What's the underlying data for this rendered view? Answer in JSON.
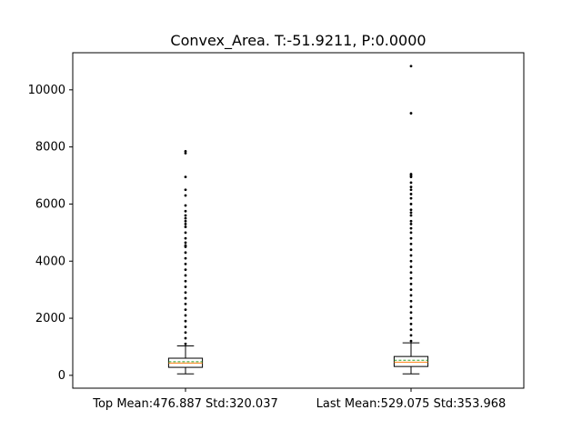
{
  "chart_data": {
    "type": "boxplot",
    "title": "Convex_Area. T:-51.9211, P:0.0000",
    "xlabel": "",
    "ylabel": "",
    "ylim": [
      -450,
      11300
    ],
    "yticks": [
      0,
      2000,
      4000,
      6000,
      8000,
      10000
    ],
    "ytick_labels": [
      "0",
      "2000",
      "4000",
      "6000",
      "8000",
      "10000"
    ],
    "grid": false,
    "categories": [
      "Top Mean:476.887 Std:320.037",
      "Last Mean:529.075 Std:353.968"
    ],
    "boxes": [
      {
        "label": "Top Mean:476.887 Std:320.037",
        "whisker_low": 50,
        "q1": 280,
        "median": 430,
        "mean": 476.887,
        "q3": 600,
        "whisker_high": 1030,
        "outliers": [
          1100,
          1300,
          1500,
          1700,
          1900,
          2100,
          2300,
          2500,
          2700,
          2900,
          3100,
          3300,
          3500,
          3700,
          3900,
          4100,
          4300,
          4500,
          4550,
          4650,
          4800,
          5000,
          5200,
          5300,
          5400,
          5500,
          5600,
          5750,
          5950,
          6300,
          6500,
          6950,
          7780,
          7850
        ]
      },
      {
        "label": "Last Mean:529.075 Std:353.968",
        "whisker_low": 50,
        "q1": 310,
        "median": 460,
        "mean": 529.075,
        "q3": 660,
        "whisker_high": 1140,
        "outliers": [
          1200,
          1400,
          1600,
          1800,
          2000,
          2200,
          2400,
          2600,
          2800,
          3000,
          3200,
          3400,
          3600,
          3800,
          4000,
          4200,
          4400,
          4600,
          4800,
          5000,
          5150,
          5300,
          5400,
          5600,
          5700,
          5800,
          6000,
          6200,
          6350,
          6500,
          6600,
          6750,
          6950,
          7000,
          7050,
          9180,
          10830
        ]
      }
    ],
    "colors": {
      "box": "#000000",
      "median": "#ff7f0e",
      "mean": "#2ca02c",
      "outlier": "#000000"
    }
  }
}
